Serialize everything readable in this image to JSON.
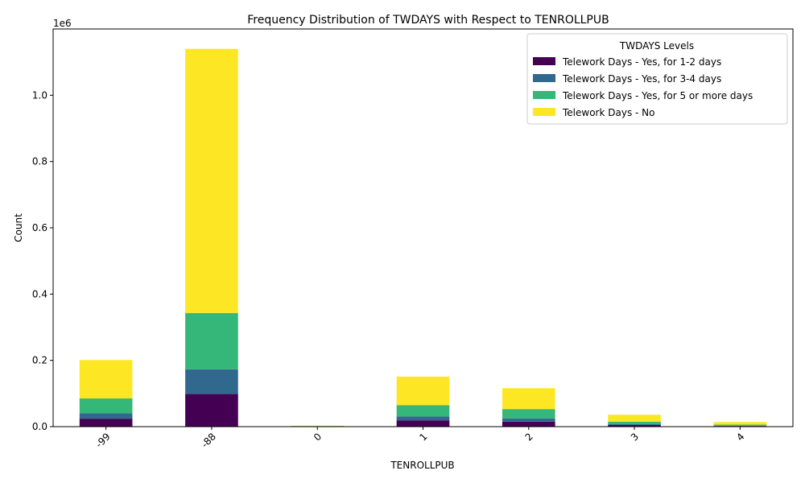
{
  "chart_data": {
    "type": "bar",
    "stacked": true,
    "title": "Frequency Distribution of TWDAYS with Respect to TENROLLPUB",
    "xlabel": "TENROLLPUB",
    "ylabel": "Count",
    "y_multiplier_label": "1e6",
    "ylim": [
      0,
      1200000
    ],
    "yticks": [
      0,
      200000,
      400000,
      600000,
      800000,
      1000000
    ],
    "ytick_labels": [
      "0.0",
      "0.2",
      "0.4",
      "0.6",
      "0.8",
      "1.0"
    ],
    "categories": [
      "-99",
      "-88",
      "0",
      "1",
      "2",
      "3",
      "4"
    ],
    "legend": {
      "title": "TWDAYS Levels",
      "placement": "top-right"
    },
    "series": [
      {
        "name": "Telework Days - Yes, for 1-2 days",
        "color": "#440154",
        "values": [
          24000,
          99000,
          500,
          19000,
          15000,
          5000,
          2000
        ]
      },
      {
        "name": "Telework Days - Yes, for 3-4 days",
        "color": "#31688e",
        "values": [
          16000,
          74000,
          500,
          12000,
          10000,
          3000,
          1000
        ]
      },
      {
        "name": "Telework Days - Yes, for 5 or more days",
        "color": "#35b779",
        "values": [
          45000,
          170000,
          1000,
          34000,
          28000,
          7000,
          3000
        ]
      },
      {
        "name": "Telework Days - No",
        "color": "#fde725",
        "values": [
          116000,
          797000,
          1000,
          86000,
          63000,
          21000,
          8000
        ]
      }
    ]
  }
}
